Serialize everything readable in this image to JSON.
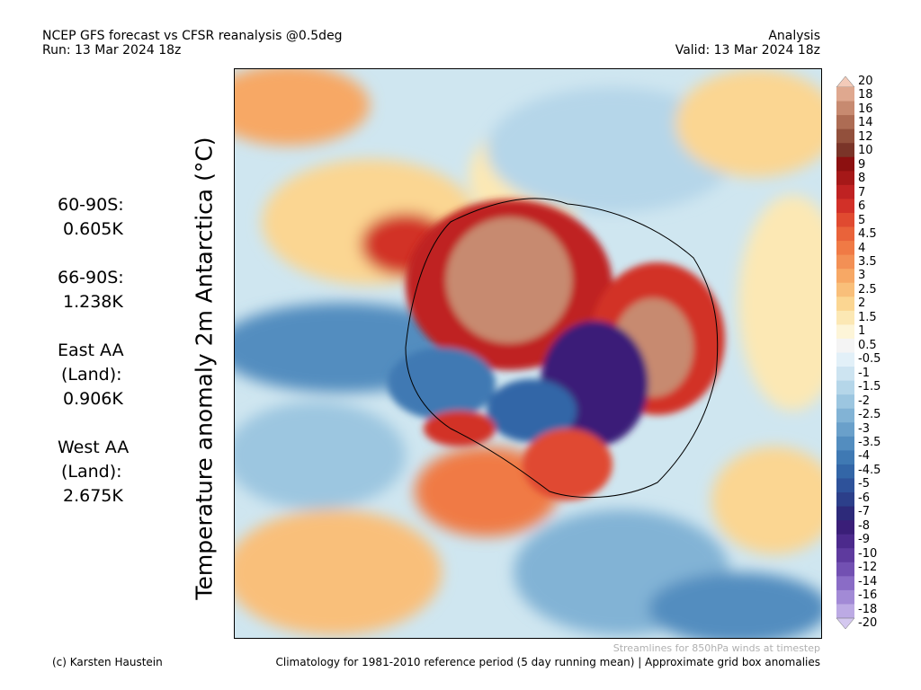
{
  "header": {
    "title": "NCEP GFS forecast vs CFSR reanalysis @0.5deg",
    "run": "Run: 13 Mar 2024 18z",
    "mode": "Analysis",
    "valid": "Valid: 13 Mar 2024 18z"
  },
  "stats": [
    {
      "lines": [
        "60-90S:",
        "0.605K"
      ]
    },
    {
      "lines": [
        "66-90S:",
        "1.238K"
      ]
    },
    {
      "lines": [
        "East AA",
        "(Land):",
        "0.906K"
      ]
    },
    {
      "lines": [
        "West AA",
        "(Land):",
        "2.675K"
      ]
    }
  ],
  "ylabel": "Temperature anomaly 2m Antarctica (°C)",
  "colorbar": {
    "labels": [
      "20",
      "18",
      "16",
      "14",
      "12",
      "10",
      "9",
      "8",
      "7",
      "6",
      "5",
      "4.5",
      "4",
      "3.5",
      "3",
      "2.5",
      "2",
      "1.5",
      "1",
      "0.5",
      "-0.5",
      "-1",
      "-1.5",
      "-2",
      "-2.5",
      "-3",
      "-3.5",
      "-4",
      "-4.5",
      "-5",
      "-6",
      "-7",
      "-8",
      "-9",
      "-10",
      "-12",
      "-14",
      "-16",
      "-18",
      "-20"
    ],
    "colors": [
      "#f3cbb9",
      "#dfa88f",
      "#c78a70",
      "#ad6c54",
      "#92503c",
      "#7a3428",
      "#8c1010",
      "#a51818",
      "#bf2222",
      "#d23028",
      "#e04a30",
      "#e9633a",
      "#f07a45",
      "#f39055",
      "#f7a865",
      "#f9bf7a",
      "#fbd692",
      "#fce8b4",
      "#fdf5d8",
      "#f4f4f4",
      "#e2f0f8",
      "#cde4f1",
      "#b5d6e9",
      "#9cc6e0",
      "#82b3d5",
      "#6aa0ca",
      "#538dbf",
      "#3f79b3",
      "#3366a7",
      "#2e529a",
      "#2c3f8a",
      "#2d2a7a",
      "#3a1e78",
      "#4c2a8c",
      "#5e3a9e",
      "#7250b2",
      "#8a6cc6",
      "#a28ad6",
      "#bcaae4",
      "#d4c8ef"
    ]
  },
  "footer": {
    "streamlines": "Streamlines for 850hPa winds at timestep",
    "credit": "(c) Karsten Haustein",
    "climatology": "Climatology for 1981-2010 reference period (5 day running mean) | Approximate grid box anomalies"
  }
}
